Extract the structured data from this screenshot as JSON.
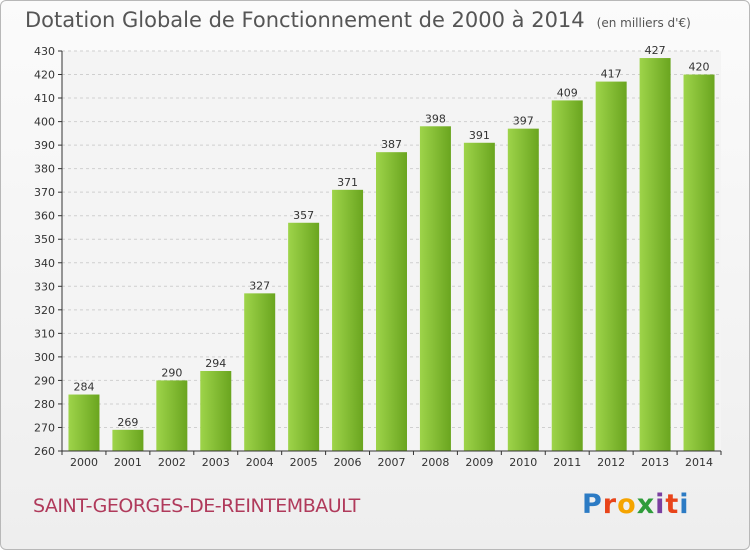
{
  "header": {
    "title": "Dotation Globale de Fonctionnement de 2000 à 2014",
    "unit": "(en milliers d'€)"
  },
  "footer": {
    "commune": "SAINT-GEORGES-DE-REINTEMBAULT",
    "logo_letters": [
      "P",
      "r",
      "o",
      "x",
      "i",
      "t",
      "i"
    ]
  },
  "colors": {
    "bar_light": "#9ed44a",
    "bar_dark": "#6aa51f",
    "logo": [
      "#2c7bc4",
      "#e8441a",
      "#f5a400",
      "#2e9c3a",
      "#7a3fa0",
      "#e8441a",
      "#2c7bc4"
    ]
  },
  "chart_data": {
    "type": "bar",
    "title": "Dotation Globale de Fonctionnement de 2000 à 2014",
    "subtitle": "(en milliers d'€)",
    "categories": [
      "2000",
      "2001",
      "2002",
      "2003",
      "2004",
      "2005",
      "2006",
      "2007",
      "2008",
      "2009",
      "2010",
      "2011",
      "2012",
      "2013",
      "2014"
    ],
    "values": [
      284,
      269,
      290,
      294,
      327,
      357,
      371,
      387,
      398,
      391,
      397,
      409,
      417,
      427,
      420
    ],
    "ylim": [
      260,
      430
    ],
    "yticks": [
      260,
      270,
      280,
      290,
      300,
      310,
      320,
      330,
      340,
      350,
      360,
      370,
      380,
      390,
      400,
      410,
      420,
      430
    ],
    "grid": true,
    "xlabel": "",
    "ylabel": ""
  }
}
